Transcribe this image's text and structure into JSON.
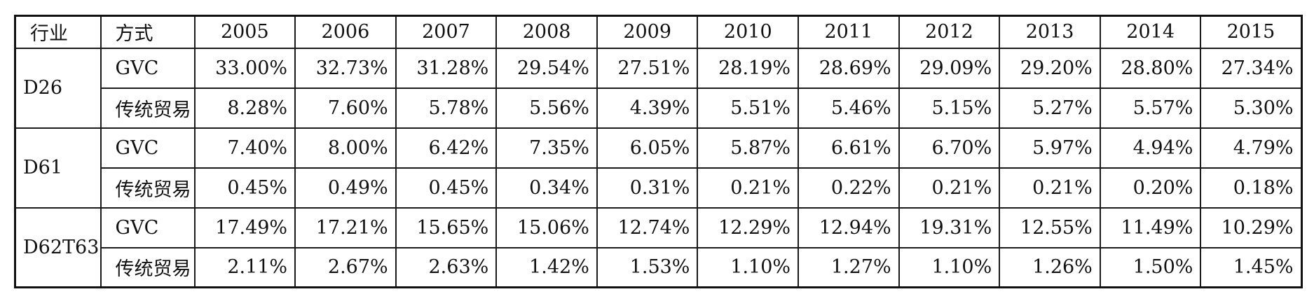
{
  "table": {
    "headers": [
      "行业",
      "方式",
      "2005",
      "2006",
      "2007",
      "2008",
      "2009",
      "2010",
      "2011",
      "2012",
      "2013",
      "2014",
      "2015"
    ],
    "groups": [
      {
        "industry": "D26",
        "rows": [
          {
            "mode": "GVC",
            "values": [
              "33.00%",
              "32.73%",
              "31.28%",
              "29.54%",
              "27.51%",
              "28.19%",
              "28.69%",
              "29.09%",
              "29.20%",
              "28.80%",
              "27.34%"
            ]
          },
          {
            "mode": "传统贸易",
            "values": [
              "8.28%",
              "7.60%",
              "5.78%",
              "5.56%",
              "4.39%",
              "5.51%",
              "5.46%",
              "5.15%",
              "5.27%",
              "5.57%",
              "5.30%"
            ]
          }
        ]
      },
      {
        "industry": "D61",
        "rows": [
          {
            "mode": "GVC",
            "values": [
              "7.40%",
              "8.00%",
              "6.42%",
              "7.35%",
              "6.05%",
              "5.87%",
              "6.61%",
              "6.70%",
              "5.97%",
              "4.94%",
              "4.79%"
            ]
          },
          {
            "mode": "传统贸易",
            "values": [
              "0.45%",
              "0.49%",
              "0.45%",
              "0.34%",
              "0.31%",
              "0.21%",
              "0.22%",
              "0.21%",
              "0.21%",
              "0.20%",
              "0.18%"
            ]
          }
        ]
      },
      {
        "industry": "D62T63",
        "rows": [
          {
            "mode": "GVC",
            "values": [
              "17.49%",
              "17.21%",
              "15.65%",
              "15.06%",
              "12.74%",
              "12.29%",
              "12.94%",
              "19.31%",
              "12.55%",
              "11.49%",
              "10.29%"
            ]
          },
          {
            "mode": "传统贸易",
            "values": [
              "2.11%",
              "2.67%",
              "2.63%",
              "1.42%",
              "1.53%",
              "1.10%",
              "1.27%",
              "1.10%",
              "1.26%",
              "1.50%",
              "1.45%"
            ]
          }
        ]
      }
    ]
  }
}
